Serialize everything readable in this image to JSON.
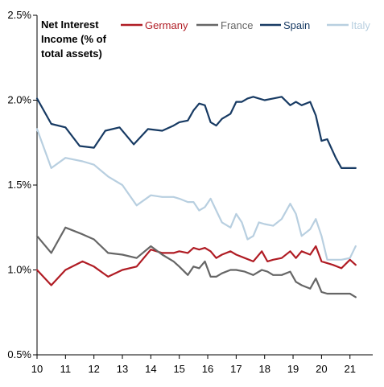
{
  "chart_data": {
    "type": "line",
    "annotation": [
      "Net Interest",
      "Income (% of",
      "total assets)"
    ],
    "ylim": [
      0.5,
      2.5
    ],
    "yticks": [
      0.5,
      1.0,
      1.5,
      2.0,
      2.5
    ],
    "ytick_labels": [
      "0.5%",
      "1.0%",
      "1.5%",
      "2.0%",
      "2.5%"
    ],
    "xlim": [
      10,
      21.8
    ],
    "xticks": [
      10,
      11,
      12,
      13,
      14,
      15,
      16,
      17,
      18,
      19,
      20,
      21
    ],
    "xtick_labels": [
      "10",
      "11",
      "12",
      "13",
      "14",
      "15",
      "16",
      "17",
      "18",
      "19",
      "20",
      "21"
    ],
    "grid": false,
    "legend_position": "top",
    "series": [
      {
        "name": "Germany",
        "color": "#b01c24",
        "x": [
          10.0,
          10.5,
          11.0,
          11.6,
          12.0,
          12.5,
          13.0,
          13.5,
          14.0,
          14.4,
          14.8,
          15.0,
          15.3,
          15.5,
          15.7,
          15.9,
          16.1,
          16.3,
          16.5,
          16.8,
          17.0,
          17.3,
          17.6,
          17.9,
          18.1,
          18.3,
          18.6,
          18.9,
          19.1,
          19.3,
          19.6,
          19.8,
          20.0,
          20.2,
          20.4,
          20.7,
          21.0,
          21.2
        ],
        "y": [
          1.0,
          0.91,
          1.0,
          1.05,
          1.02,
          0.96,
          1.0,
          1.02,
          1.12,
          1.1,
          1.1,
          1.11,
          1.1,
          1.13,
          1.12,
          1.13,
          1.11,
          1.07,
          1.09,
          1.11,
          1.09,
          1.07,
          1.05,
          1.11,
          1.05,
          1.06,
          1.07,
          1.11,
          1.07,
          1.11,
          1.09,
          1.14,
          1.05,
          1.04,
          1.03,
          1.01,
          1.06,
          1.03
        ]
      },
      {
        "name": "France",
        "color": "#666666",
        "x": [
          10.0,
          10.5,
          11.0,
          11.6,
          12.0,
          12.5,
          13.0,
          13.5,
          14.0,
          14.4,
          14.8,
          15.0,
          15.3,
          15.5,
          15.7,
          15.9,
          16.1,
          16.3,
          16.5,
          16.8,
          17.0,
          17.3,
          17.6,
          17.9,
          18.1,
          18.3,
          18.6,
          18.9,
          19.1,
          19.3,
          19.6,
          19.8,
          20.0,
          20.2,
          20.4,
          20.7,
          21.0,
          21.2
        ],
        "y": [
          1.2,
          1.1,
          1.25,
          1.21,
          1.18,
          1.1,
          1.09,
          1.07,
          1.14,
          1.09,
          1.05,
          1.02,
          0.97,
          1.02,
          1.01,
          1.05,
          0.96,
          0.96,
          0.98,
          1.0,
          1.0,
          0.99,
          0.97,
          1.0,
          0.99,
          0.97,
          0.97,
          0.99,
          0.93,
          0.91,
          0.89,
          0.95,
          0.87,
          0.86,
          0.86,
          0.86,
          0.86,
          0.84
        ]
      },
      {
        "name": "Spain",
        "color": "#173a63",
        "x": [
          10.0,
          10.5,
          11.0,
          11.5,
          12.0,
          12.4,
          12.9,
          13.4,
          13.9,
          14.4,
          14.8,
          15.0,
          15.3,
          15.5,
          15.7,
          15.9,
          16.1,
          16.3,
          16.5,
          16.8,
          17.0,
          17.2,
          17.4,
          17.6,
          17.8,
          18.0,
          18.3,
          18.6,
          18.9,
          19.1,
          19.3,
          19.6,
          19.8,
          20.0,
          20.2,
          20.5,
          20.7,
          20.9,
          21.2
        ],
        "y": [
          2.01,
          1.86,
          1.84,
          1.73,
          1.72,
          1.82,
          1.84,
          1.74,
          1.83,
          1.82,
          1.85,
          1.87,
          1.88,
          1.94,
          1.98,
          1.97,
          1.87,
          1.85,
          1.89,
          1.92,
          1.99,
          1.99,
          2.01,
          2.02,
          2.01,
          2.0,
          2.01,
          2.02,
          1.97,
          1.99,
          1.97,
          1.99,
          1.91,
          1.76,
          1.77,
          1.66,
          1.6,
          1.6,
          1.6
        ]
      },
      {
        "name": "Italy",
        "color": "#b8cfe0",
        "x": [
          10.0,
          10.5,
          11.0,
          11.6,
          12.0,
          12.5,
          13.0,
          13.5,
          14.0,
          14.4,
          14.8,
          15.0,
          15.3,
          15.5,
          15.7,
          15.9,
          16.1,
          16.3,
          16.5,
          16.8,
          17.0,
          17.2,
          17.4,
          17.6,
          17.8,
          18.0,
          18.3,
          18.6,
          18.9,
          19.1,
          19.3,
          19.6,
          19.8,
          20.0,
          20.2,
          20.4,
          20.7,
          21.0,
          21.2
        ],
        "y": [
          1.83,
          1.6,
          1.66,
          1.64,
          1.62,
          1.55,
          1.5,
          1.38,
          1.44,
          1.43,
          1.43,
          1.42,
          1.4,
          1.4,
          1.35,
          1.37,
          1.42,
          1.35,
          1.28,
          1.25,
          1.33,
          1.28,
          1.18,
          1.2,
          1.28,
          1.27,
          1.26,
          1.3,
          1.39,
          1.33,
          1.2,
          1.24,
          1.3,
          1.2,
          1.06,
          1.06,
          1.06,
          1.07,
          1.14
        ]
      }
    ]
  }
}
